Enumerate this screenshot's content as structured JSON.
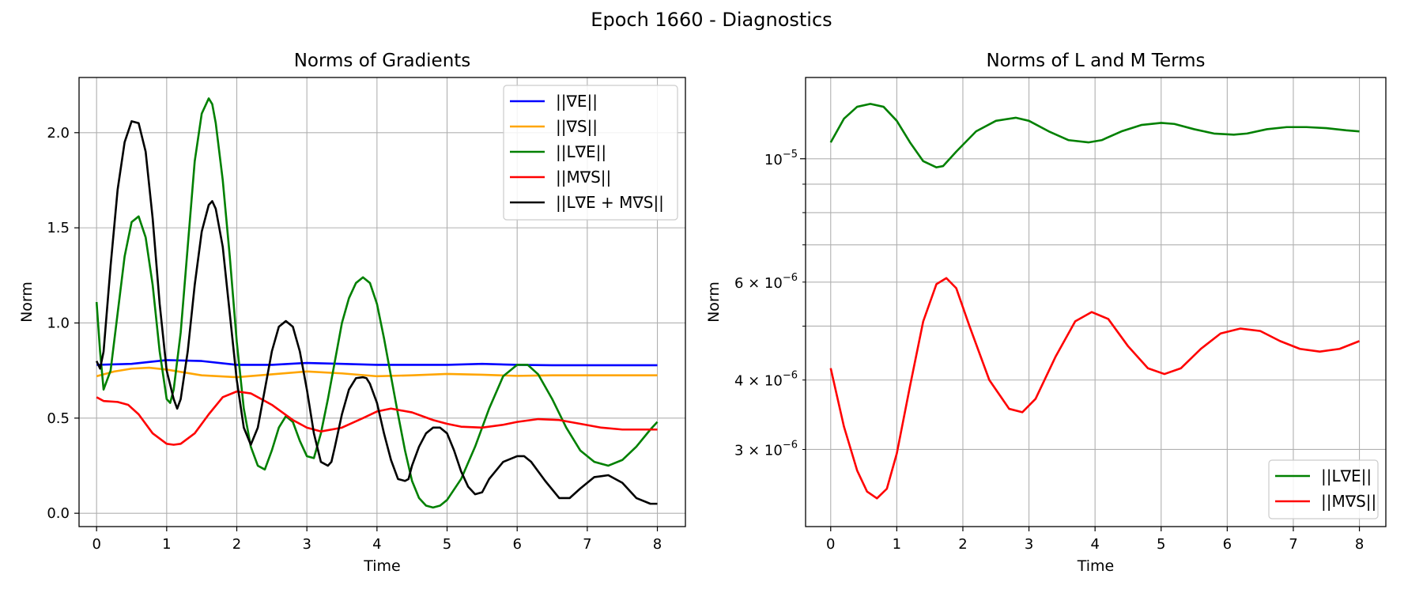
{
  "figure": {
    "title": "Epoch 1660 - Diagnostics"
  },
  "chart_data": [
    {
      "type": "line",
      "title": "Norms of Gradients",
      "xlabel": "Time",
      "ylabel": "Norm",
      "xlim": [
        -0.25,
        8.4
      ],
      "ylim": [
        -0.07,
        2.29
      ],
      "xticks": [
        0,
        1,
        2,
        3,
        4,
        5,
        6,
        7,
        8
      ],
      "xtick_labels": [
        "0",
        "1",
        "2",
        "3",
        "4",
        "5",
        "6",
        "7",
        "8"
      ],
      "yticks": [
        0.0,
        0.5,
        1.0,
        1.5,
        2.0
      ],
      "ytick_labels": [
        "0.0",
        "0.5",
        "1.0",
        "1.5",
        "2.0"
      ],
      "grid": true,
      "legend": "top-right",
      "series": [
        {
          "name": "||∇E||",
          "color": "#0000ff",
          "x": [
            0,
            0.5,
            1,
            1.5,
            2,
            2.5,
            3,
            3.5,
            4,
            4.5,
            5,
            5.5,
            6,
            6.5,
            7,
            7.5,
            8
          ],
          "y": [
            0.78,
            0.785,
            0.805,
            0.8,
            0.78,
            0.78,
            0.79,
            0.785,
            0.78,
            0.78,
            0.78,
            0.785,
            0.78,
            0.778,
            0.778,
            0.778,
            0.778
          ]
        },
        {
          "name": "||∇S||",
          "color": "#ffa500",
          "x": [
            0,
            0.25,
            0.5,
            0.75,
            1,
            1.5,
            2,
            2.5,
            3,
            3.5,
            4,
            4.5,
            5,
            5.5,
            6,
            6.5,
            7,
            7.5,
            8
          ],
          "y": [
            0.72,
            0.745,
            0.76,
            0.765,
            0.755,
            0.725,
            0.715,
            0.73,
            0.745,
            0.735,
            0.72,
            0.725,
            0.732,
            0.728,
            0.722,
            0.725,
            0.725,
            0.725,
            0.725
          ]
        },
        {
          "name": "||L∇E||",
          "color": "#008000",
          "x": [
            0,
            0.05,
            0.1,
            0.2,
            0.3,
            0.4,
            0.5,
            0.6,
            0.7,
            0.8,
            0.9,
            1.0,
            1.05,
            1.1,
            1.2,
            1.3,
            1.4,
            1.5,
            1.6,
            1.65,
            1.7,
            1.8,
            1.9,
            2.0,
            2.1,
            2.2,
            2.3,
            2.4,
            2.5,
            2.6,
            2.7,
            2.8,
            2.9,
            3.0,
            3.1,
            3.2,
            3.3,
            3.4,
            3.5,
            3.6,
            3.7,
            3.8,
            3.9,
            4.0,
            4.1,
            4.2,
            4.3,
            4.4,
            4.5,
            4.6,
            4.7,
            4.8,
            4.9,
            5.0,
            5.2,
            5.4,
            5.6,
            5.8,
            6.0,
            6.15,
            6.3,
            6.5,
            6.7,
            6.9,
            7.1,
            7.3,
            7.5,
            7.7,
            7.9,
            8.0
          ],
          "y": [
            1.11,
            0.85,
            0.65,
            0.75,
            1.05,
            1.35,
            1.53,
            1.56,
            1.45,
            1.2,
            0.85,
            0.6,
            0.58,
            0.65,
            0.95,
            1.4,
            1.85,
            2.1,
            2.18,
            2.15,
            2.05,
            1.75,
            1.35,
            0.9,
            0.55,
            0.35,
            0.25,
            0.23,
            0.33,
            0.45,
            0.51,
            0.48,
            0.38,
            0.3,
            0.29,
            0.42,
            0.6,
            0.8,
            1.0,
            1.13,
            1.21,
            1.24,
            1.21,
            1.1,
            0.92,
            0.72,
            0.52,
            0.33,
            0.17,
            0.08,
            0.04,
            0.03,
            0.04,
            0.07,
            0.18,
            0.35,
            0.55,
            0.72,
            0.78,
            0.78,
            0.73,
            0.6,
            0.45,
            0.33,
            0.27,
            0.25,
            0.28,
            0.35,
            0.44,
            0.48
          ]
        },
        {
          "name": "||M∇S||",
          "color": "#ff0000",
          "x": [
            0,
            0.1,
            0.3,
            0.45,
            0.6,
            0.8,
            1.0,
            1.1,
            1.2,
            1.4,
            1.6,
            1.8,
            2.0,
            2.2,
            2.5,
            2.8,
            3.0,
            3.2,
            3.5,
            3.8,
            4.0,
            4.2,
            4.5,
            4.8,
            5.0,
            5.2,
            5.5,
            5.8,
            6.0,
            6.3,
            6.6,
            6.9,
            7.2,
            7.5,
            7.8,
            8.0
          ],
          "y": [
            0.61,
            0.59,
            0.585,
            0.57,
            0.52,
            0.42,
            0.365,
            0.36,
            0.365,
            0.42,
            0.52,
            0.61,
            0.64,
            0.63,
            0.57,
            0.49,
            0.45,
            0.43,
            0.45,
            0.5,
            0.535,
            0.55,
            0.53,
            0.49,
            0.47,
            0.455,
            0.45,
            0.465,
            0.48,
            0.495,
            0.49,
            0.47,
            0.45,
            0.44,
            0.44,
            0.44
          ]
        },
        {
          "name": "||L∇E + M∇S||",
          "color": "#000000",
          "x": [
            0,
            0.05,
            0.1,
            0.2,
            0.3,
            0.4,
            0.5,
            0.6,
            0.7,
            0.8,
            0.9,
            1.0,
            1.1,
            1.15,
            1.2,
            1.3,
            1.4,
            1.5,
            1.6,
            1.65,
            1.7,
            1.8,
            1.9,
            2.0,
            2.1,
            2.2,
            2.3,
            2.4,
            2.5,
            2.6,
            2.7,
            2.8,
            2.9,
            3.0,
            3.1,
            3.2,
            3.3,
            3.35,
            3.4,
            3.5,
            3.6,
            3.7,
            3.8,
            3.85,
            3.9,
            4.0,
            4.1,
            4.2,
            4.3,
            4.4,
            4.45,
            4.5,
            4.6,
            4.7,
            4.8,
            4.9,
            5.0,
            5.1,
            5.2,
            5.3,
            5.4,
            5.5,
            5.6,
            5.8,
            6.0,
            6.1,
            6.2,
            6.4,
            6.6,
            6.75,
            6.9,
            7.1,
            7.3,
            7.5,
            7.7,
            7.9,
            8.0
          ],
          "y": [
            0.8,
            0.76,
            0.85,
            1.3,
            1.7,
            1.95,
            2.06,
            2.05,
            1.9,
            1.55,
            1.1,
            0.75,
            0.6,
            0.55,
            0.6,
            0.85,
            1.2,
            1.48,
            1.62,
            1.64,
            1.6,
            1.4,
            1.05,
            0.7,
            0.45,
            0.36,
            0.45,
            0.65,
            0.85,
            0.98,
            1.01,
            0.98,
            0.85,
            0.65,
            0.42,
            0.27,
            0.25,
            0.27,
            0.35,
            0.52,
            0.65,
            0.71,
            0.715,
            0.71,
            0.68,
            0.58,
            0.42,
            0.28,
            0.18,
            0.17,
            0.18,
            0.25,
            0.35,
            0.42,
            0.45,
            0.45,
            0.42,
            0.33,
            0.22,
            0.14,
            0.1,
            0.11,
            0.18,
            0.27,
            0.3,
            0.3,
            0.27,
            0.17,
            0.08,
            0.08,
            0.13,
            0.19,
            0.2,
            0.16,
            0.08,
            0.05,
            0.05
          ]
        }
      ]
    },
    {
      "type": "line",
      "title": "Norms of L and M Terms",
      "xlabel": "Time",
      "ylabel": "Norm",
      "yscale": "log",
      "xlim": [
        -0.38,
        8.4
      ],
      "ylim": [
        2.18e-06,
        1.4e-05
      ],
      "xticks": [
        0,
        1,
        2,
        3,
        4,
        5,
        6,
        7,
        8
      ],
      "xtick_labels": [
        "0",
        "1",
        "2",
        "3",
        "4",
        "5",
        "6",
        "7",
        "8"
      ],
      "yticks_major": [
        1e-05
      ],
      "yticks_minor": [
        3e-06,
        4e-06,
        5e-06,
        6e-06,
        7e-06,
        8e-06,
        9e-06
      ],
      "ytick_labels": [
        {
          "value": 1e-05,
          "mantissa": "",
          "base": "10",
          "exponent": "−5"
        },
        {
          "value": 6e-06,
          "mantissa": "6 × ",
          "base": "10",
          "exponent": "−6"
        },
        {
          "value": 4e-06,
          "mantissa": "4 × ",
          "base": "10",
          "exponent": "−6"
        },
        {
          "value": 3e-06,
          "mantissa": "3 × ",
          "base": "10",
          "exponent": "−6"
        }
      ],
      "grid": true,
      "legend": "bottom-right",
      "series": [
        {
          "name": "||L∇E||",
          "color": "#008000",
          "x": [
            0,
            0.2,
            0.4,
            0.6,
            0.8,
            1.0,
            1.2,
            1.4,
            1.6,
            1.7,
            1.9,
            2.2,
            2.5,
            2.8,
            3.0,
            3.3,
            3.6,
            3.9,
            4.1,
            4.4,
            4.7,
            5.0,
            5.2,
            5.5,
            5.8,
            6.1,
            6.3,
            6.6,
            6.9,
            7.2,
            7.5,
            7.8,
            8.0
          ],
          "y": [
            1.07e-05,
            1.18e-05,
            1.24e-05,
            1.255e-05,
            1.24e-05,
            1.17e-05,
            1.07e-05,
            9.9e-06,
            9.65e-06,
            9.7e-06,
            1.03e-05,
            1.12e-05,
            1.17e-05,
            1.185e-05,
            1.17e-05,
            1.12e-05,
            1.08e-05,
            1.07e-05,
            1.08e-05,
            1.12e-05,
            1.15e-05,
            1.16e-05,
            1.155e-05,
            1.13e-05,
            1.11e-05,
            1.105e-05,
            1.11e-05,
            1.13e-05,
            1.14e-05,
            1.14e-05,
            1.135e-05,
            1.125e-05,
            1.12e-05
          ]
        },
        {
          "name": "||M∇S||",
          "color": "#ff0000",
          "x": [
            0,
            0.2,
            0.4,
            0.55,
            0.7,
            0.85,
            1.0,
            1.2,
            1.4,
            1.6,
            1.75,
            1.9,
            2.1,
            2.4,
            2.7,
            2.9,
            3.1,
            3.4,
            3.7,
            3.95,
            4.2,
            4.5,
            4.8,
            5.05,
            5.3,
            5.6,
            5.9,
            6.2,
            6.5,
            6.8,
            7.1,
            7.4,
            7.7,
            8.0
          ],
          "y": [
            4.2e-06,
            3.3e-06,
            2.75e-06,
            2.52e-06,
            2.45e-06,
            2.55e-06,
            2.95e-06,
            3.9e-06,
            5.1e-06,
            5.95e-06,
            6.1e-06,
            5.85e-06,
            5e-06,
            4e-06,
            3.55e-06,
            3.5e-06,
            3.7e-06,
            4.4e-06,
            5.1e-06,
            5.3e-06,
            5.15e-06,
            4.6e-06,
            4.2e-06,
            4.1e-06,
            4.2e-06,
            4.55e-06,
            4.85e-06,
            4.95e-06,
            4.9e-06,
            4.7e-06,
            4.55e-06,
            4.5e-06,
            4.55e-06,
            4.7e-06
          ]
        }
      ]
    }
  ]
}
